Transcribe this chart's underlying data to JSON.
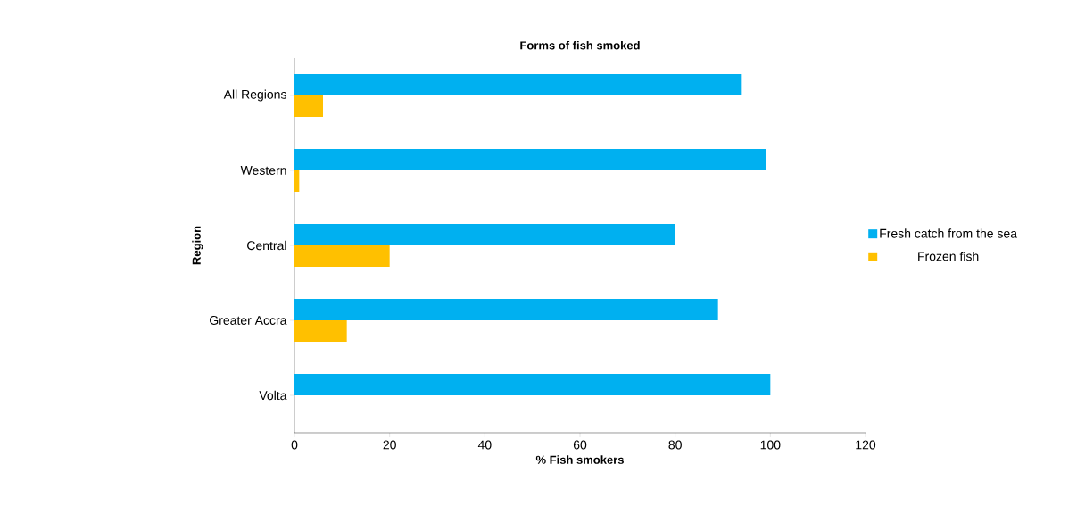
{
  "chart_data": {
    "type": "bar",
    "orientation": "horizontal",
    "title": "Forms of fish smoked",
    "xlabel": "% Fish smokers",
    "ylabel": "Region",
    "categories": [
      "All Regions",
      "Western",
      "Central",
      "Greater Accra",
      "Volta"
    ],
    "series": [
      {
        "name": "Fresh catch from the sea",
        "color": "#00b0f0",
        "values": [
          94,
          99,
          80,
          89,
          100
        ]
      },
      {
        "name": "Frozen fish",
        "color": "#ffc000",
        "values": [
          6,
          1,
          20,
          11,
          0
        ]
      }
    ],
    "xlim": [
      0,
      120
    ],
    "xticks": [
      0,
      20,
      40,
      60,
      80,
      100,
      120
    ],
    "grid": false,
    "legend": "right"
  }
}
